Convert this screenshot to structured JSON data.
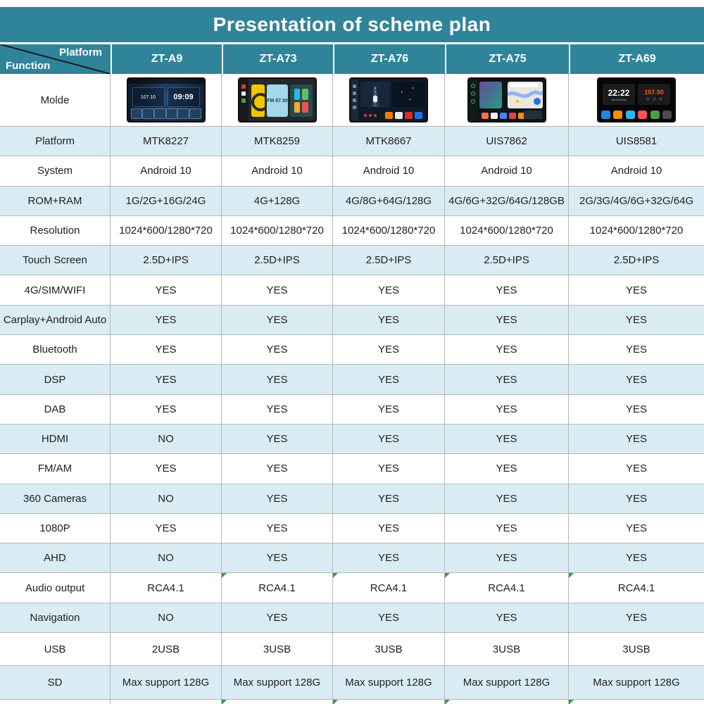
{
  "title": "Presentation of scheme plan",
  "corner": {
    "platform": "Platform",
    "function": "Function"
  },
  "columns": [
    "ZT-A9",
    "ZT-A73",
    "ZT-A76",
    "ZT-A75",
    "ZT-A69"
  ],
  "molde_label": "Molde",
  "rows": [
    {
      "label": "Platform",
      "values": [
        "MTK8227",
        "MTK8259",
        "MTK8667",
        "UIS7862",
        "UIS8581"
      ]
    },
    {
      "label": "System",
      "values": [
        "Android 10",
        "Android 10",
        "Android 10",
        "Android 10",
        "Android 10"
      ]
    },
    {
      "label": "ROM+RAM",
      "values": [
        "1G/2G+16G/24G",
        "4G+128G",
        "4G/8G+64G/128G",
        "4G/6G+32G/64G/128GB",
        "2G/3G/4G/6G+32G/64G"
      ]
    },
    {
      "label": "Resolution",
      "values": [
        "1024*600/1280*720",
        "1024*600/1280*720",
        "1024*600/1280*720",
        "1024*600/1280*720",
        "1024*600/1280*720"
      ]
    },
    {
      "label": "Touch Screen",
      "values": [
        "2.5D+IPS",
        "2.5D+IPS",
        "2.5D+IPS",
        "2.5D+IPS",
        "2.5D+IPS"
      ]
    },
    {
      "label": "4G/SIM/WIFI",
      "values": [
        "YES",
        "YES",
        "YES",
        "YES",
        "YES"
      ]
    },
    {
      "label": "Carplay+Android Auto",
      "values": [
        "YES",
        "YES",
        "YES",
        "YES",
        "YES"
      ]
    },
    {
      "label": "Bluetooth",
      "values": [
        "YES",
        "YES",
        "YES",
        "YES",
        "YES"
      ]
    },
    {
      "label": "DSP",
      "values": [
        "YES",
        "YES",
        "YES",
        "YES",
        "YES"
      ]
    },
    {
      "label": "DAB",
      "values": [
        "YES",
        "YES",
        "YES",
        "YES",
        "YES"
      ]
    },
    {
      "label": "HDMI",
      "values": [
        "NO",
        "YES",
        "YES",
        "YES",
        "YES"
      ]
    },
    {
      "label": "FM/AM",
      "values": [
        "YES",
        "YES",
        "YES",
        "YES",
        "YES"
      ]
    },
    {
      "label": "360 Cameras",
      "values": [
        "NO",
        "YES",
        "YES",
        "YES",
        "YES"
      ]
    },
    {
      "label": "1080P",
      "values": [
        "YES",
        "YES",
        "YES",
        "YES",
        "YES"
      ]
    },
    {
      "label": "AHD",
      "values": [
        "NO",
        "YES",
        "YES",
        "YES",
        "YES"
      ]
    },
    {
      "label": "Audio output",
      "values": [
        "RCA4.1",
        "RCA4.1",
        "RCA4.1",
        "RCA4.1",
        "RCA4.1"
      ],
      "markers": [
        1,
        2,
        3,
        4
      ]
    },
    {
      "label": "Navigation",
      "values": [
        "NO",
        "YES",
        "YES",
        "YES",
        "YES"
      ]
    },
    {
      "label": "USB",
      "values": [
        "2USB",
        "3USB",
        "3USB",
        "3USB",
        "3USB"
      ]
    },
    {
      "label": "SD",
      "values": [
        "Max support 128G",
        "Max support 128G",
        "Max support 128G",
        "Max support 128G",
        "Max support 128G"
      ]
    }
  ],
  "bottom_markers": [
    1,
    2,
    3,
    4
  ],
  "devices": [
    {
      "model": "ZT-A9",
      "freq": "107.10",
      "clock": "09:09"
    },
    {
      "model": "ZT-A73",
      "freq": "FM 87.50"
    },
    {
      "model": "ZT-A76"
    },
    {
      "model": "ZT-A75"
    },
    {
      "model": "ZT-A69",
      "clock": "22:22",
      "freq": "107.50",
      "clock_sub": "Wednesday"
    }
  ],
  "colors": {
    "teal": "#30849A",
    "row_blue": "#D9ECF4",
    "grid_gray": "#B7B7B7",
    "marker_green": "#2F9E44",
    "text": "#212121"
  }
}
